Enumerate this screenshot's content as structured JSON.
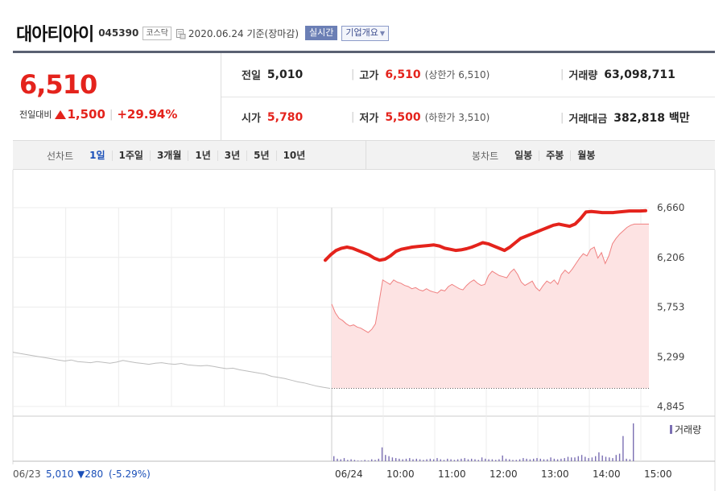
{
  "header": {
    "company_name": "대아티아이",
    "code": "045390",
    "market": "코스닥",
    "date": "2020.06.24 기준(장마감)",
    "realtime_label": "실시간",
    "overview_label": "기업개요"
  },
  "price": {
    "current": "6,510",
    "diff_label": "전일대비",
    "diff": "1,500",
    "rate": "+29.94%"
  },
  "stats": {
    "prev_label": "전일",
    "prev": "5,010",
    "open_label": "시가",
    "open": "5,780",
    "high_label": "고가",
    "high": "6,510",
    "high_note": "(상한가 6,510)",
    "low_label": "저가",
    "low": "5,500",
    "low_note": "(하한가 3,510)",
    "volume_label": "거래량",
    "volume": "63,098,711",
    "amount_label": "거래대금",
    "amount": "382,818 백만"
  },
  "tabs": {
    "line_head": "선차트",
    "line": [
      "1일",
      "1주일",
      "3개월",
      "1년",
      "3년",
      "5년",
      "10년"
    ],
    "line_active": 0,
    "candle_head": "봉차트",
    "candle": [
      "일봉",
      "주봉",
      "월봉"
    ]
  },
  "chart_data": {
    "type": "line",
    "y_ticks": [
      "6,660",
      "6,206",
      "5,753",
      "5,299",
      "4,845"
    ],
    "ylim": [
      4845,
      6660
    ],
    "x_ticks": [
      "06/24",
      "10:00",
      "11:00",
      "12:00",
      "13:00",
      "14:00",
      "15:00"
    ],
    "prev_day_label": "06/23",
    "prev_day_close": "5,010",
    "prev_day_change": "▼280",
    "prev_day_rate": "(-5.29%)",
    "volume_legend": "거래량",
    "prev_close": 5010,
    "colors": {
      "today_line": "#f08080",
      "today_fill": "#fde3e3",
      "prev_line": "#bcbcbc",
      "avg_line": "#e4231c",
      "volume": "#7b6fb3"
    },
    "series": [
      {
        "values": [
          5340,
          5330,
          5320,
          5310,
          5300,
          5290,
          5280,
          5270,
          5260,
          5270,
          5255,
          5250,
          5245,
          5255,
          5248,
          5240,
          5250,
          5265,
          5255,
          5245,
          5238,
          5230,
          5240,
          5245,
          5235,
          5230,
          5238,
          5225,
          5220,
          5215,
          5220,
          5210,
          5200,
          5190,
          5195,
          5180,
          5170,
          5160,
          5150,
          5140,
          5120,
          5110,
          5100,
          5085,
          5070,
          5060,
          5045,
          5030,
          5020,
          5010
        ]
      },
      {
        "values": [
          5780,
          5700,
          5650,
          5630,
          5600,
          5580,
          5590,
          5570,
          5560,
          5540,
          5520,
          5550,
          5600,
          5800,
          6000,
          5980,
          5960,
          6000,
          5980,
          5970,
          5950,
          5940,
          5920,
          5930,
          5910,
          5900,
          5920,
          5900,
          5890,
          5880,
          5910,
          5900,
          5940,
          5960,
          5940,
          5920,
          5910,
          5950,
          5980,
          6000,
          5970,
          5950,
          5960,
          6040,
          6080,
          6060,
          6040,
          6030,
          6020,
          6070,
          6100,
          6050,
          5980,
          5950,
          5970,
          5990,
          5930,
          5900,
          5950,
          5990,
          5970,
          6000,
          5960,
          6050,
          6090,
          6060,
          6100,
          6150,
          6200,
          6240,
          6220,
          6280,
          6300,
          6200,
          6250,
          6150,
          6220,
          6330,
          6380,
          6420,
          6450,
          6480,
          6500,
          6510,
          6510,
          6510,
          6510,
          6510
        ]
      },
      {
        "values": [
          6180,
          6230,
          6270,
          6290,
          6300,
          6290,
          6270,
          6250,
          6230,
          6200,
          6180,
          6190,
          6220,
          6260,
          6280,
          6290,
          6300,
          6305,
          6310,
          6315,
          6320,
          6310,
          6290,
          6280,
          6270,
          6275,
          6285,
          6300,
          6320,
          6340,
          6330,
          6310,
          6290,
          6270,
          6300,
          6340,
          6380,
          6400,
          6420,
          6440,
          6460,
          6480,
          6500,
          6510,
          6500,
          6490,
          6510,
          6560,
          6620,
          6625,
          6620,
          6615,
          6615,
          6615,
          6620,
          6625,
          6630,
          6630,
          6630,
          6632
        ]
      }
    ],
    "volume": [
      8,
      4,
      3,
      5,
      2,
      3,
      2,
      1,
      1,
      2,
      1,
      3,
      2,
      4,
      22,
      10,
      8,
      6,
      5,
      4,
      3,
      4,
      5,
      3,
      4,
      3,
      2,
      3,
      4,
      3,
      5,
      3,
      2,
      4,
      3,
      2,
      3,
      4,
      5,
      3,
      4,
      3,
      2,
      6,
      4,
      3,
      3,
      2,
      3,
      9,
      4,
      3,
      2,
      2,
      3,
      5,
      4,
      3,
      4,
      5,
      4,
      3,
      3,
      6,
      4,
      3,
      4,
      5,
      7,
      6,
      6,
      8,
      10,
      7,
      5,
      6,
      8,
      14,
      9,
      7,
      6,
      5,
      10,
      12,
      40,
      4,
      3,
      60
    ]
  }
}
